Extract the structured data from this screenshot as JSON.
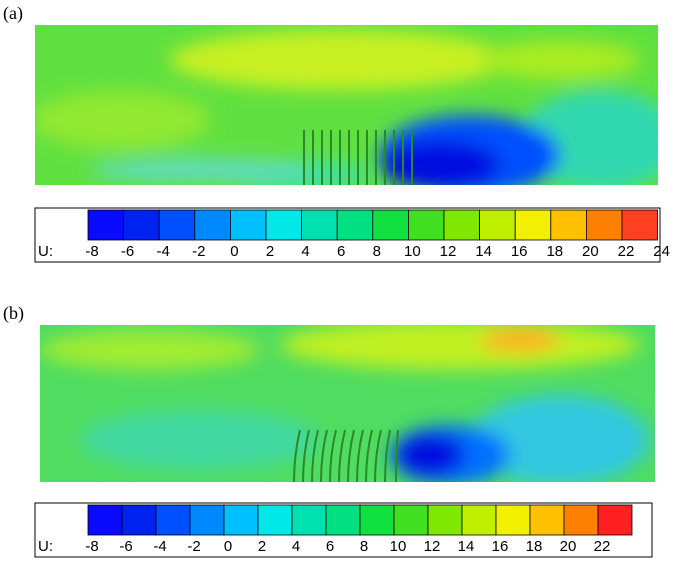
{
  "panels": [
    {
      "label": "(a)",
      "colorbar": {
        "label": "U:",
        "ticks": [
          -8,
          -6,
          -4,
          -2,
          0,
          2,
          4,
          6,
          8,
          10,
          12,
          14,
          16,
          18,
          20,
          22,
          24
        ],
        "colors": [
          "#0a0aff",
          "#0022f0",
          "#0050ff",
          "#0088ff",
          "#00c0ff",
          "#00e8e8",
          "#00e0b0",
          "#00e080",
          "#10e040",
          "#40e020",
          "#80e800",
          "#c0f000",
          "#f0f000",
          "#ffc000",
          "#ff8000",
          "#ff4020"
        ]
      }
    },
    {
      "label": "(b)",
      "colorbar": {
        "label": "U:",
        "ticks": [
          -8,
          -6,
          -4,
          -2,
          0,
          2,
          4,
          6,
          8,
          10,
          12,
          14,
          16,
          18,
          20,
          22
        ],
        "colors": [
          "#0a0aff",
          "#0022f0",
          "#0050ff",
          "#0088ff",
          "#00c0ff",
          "#00e8e8",
          "#00e0b0",
          "#00e080",
          "#10e040",
          "#40e020",
          "#80e800",
          "#c0f000",
          "#f0f000",
          "#ffc000",
          "#ff8000",
          "#ff2020"
        ]
      }
    }
  ]
}
